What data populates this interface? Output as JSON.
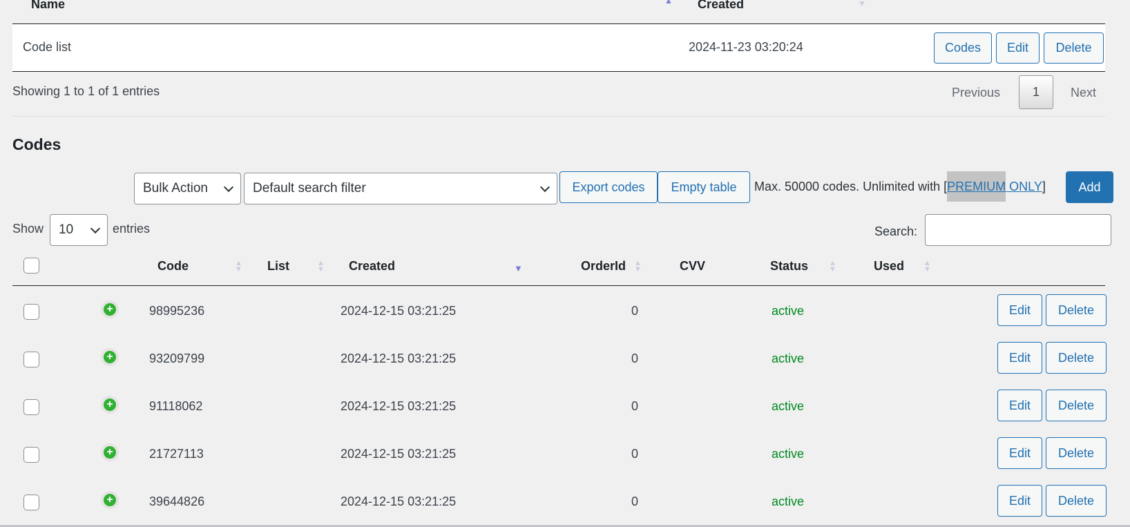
{
  "lists_table": {
    "headers": {
      "name": "Name",
      "created": "Created"
    },
    "rows": [
      {
        "name": "Code list",
        "created": "2024-11-23 03:20:24",
        "codes_label": "Codes",
        "edit_label": "Edit",
        "delete_label": "Delete"
      }
    ],
    "info": "Showing 1 to 1 of 1 entries",
    "pagination": {
      "previous": "Previous",
      "current": "1",
      "next": "Next"
    }
  },
  "codes": {
    "title": "Codes",
    "toolbar": {
      "bulk_action": "Bulk Action",
      "search_filter": "Default search filter",
      "export": "Export codes",
      "empty": "Empty table",
      "limit_text": "Max. 50000 codes. Unlimited with [",
      "premium_link": "PREMIUM ONLY",
      "limit_end": "]",
      "add": "Add"
    },
    "length": {
      "show": "Show",
      "value": "10",
      "entries": "entries"
    },
    "search": {
      "label": "Search:",
      "value": ""
    },
    "headers": {
      "code": "Code",
      "list": "List",
      "created": "Created",
      "orderid": "OrderId",
      "cvv": "CVV",
      "status": "Status",
      "used": "Used"
    },
    "rows": [
      {
        "code": "98995236",
        "list": "",
        "created": "2024-12-15 03:21:25",
        "orderid": "0",
        "cvv": "",
        "status": "active",
        "used": ""
      },
      {
        "code": "93209799",
        "list": "",
        "created": "2024-12-15 03:21:25",
        "orderid": "0",
        "cvv": "",
        "status": "active",
        "used": ""
      },
      {
        "code": "91118062",
        "list": "",
        "created": "2024-12-15 03:21:25",
        "orderid": "0",
        "cvv": "",
        "status": "active",
        "used": ""
      },
      {
        "code": "21727113",
        "list": "",
        "created": "2024-12-15 03:21:25",
        "orderid": "0",
        "cvv": "",
        "status": "active",
        "used": ""
      },
      {
        "code": "39644826",
        "list": "",
        "created": "2024-12-15 03:21:25",
        "orderid": "0",
        "cvv": "",
        "status": "active",
        "used": ""
      }
    ],
    "edit_label": "Edit",
    "delete_label": "Delete"
  },
  "colors": {
    "accent": "#2271b1",
    "status_active": "#008a20",
    "expand_icon": "#31b131"
  }
}
